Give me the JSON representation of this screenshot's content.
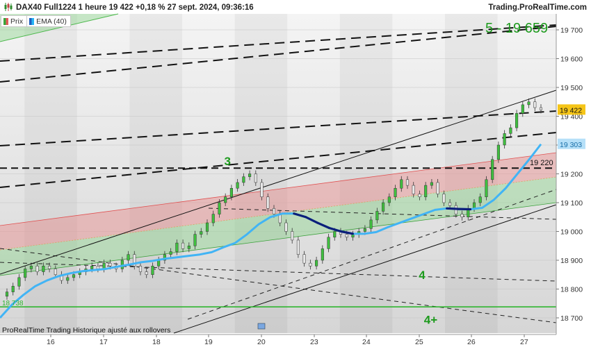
{
  "header": {
    "instrument": "DAX40 Full1224 1 heure 19 422 +0,18 % 27 sept. 2024, 09:36:16",
    "site": "Trading.ProRealTime.com"
  },
  "legend": {
    "items": [
      {
        "label": "Prix",
        "color": "#3aa63a",
        "color2": "#e05a5a"
      },
      {
        "label": "EMA (40)",
        "color": "#1f5fbf",
        "color2": "#27b4f5"
      }
    ]
  },
  "footer": {
    "text": "ProRealTime Trading  Historique ajusté aux rollovers"
  },
  "chart_data": {
    "type": "candlestick",
    "timeframe": "1 hour",
    "x_tick_labels": [
      "16",
      "17",
      "18",
      "19",
      "20",
      "23",
      "24",
      "25",
      "26",
      "27"
    ],
    "y_ticks": [
      18700,
      18800,
      18900,
      19000,
      19100,
      19200,
      19300,
      19400,
      19500,
      19600,
      19700
    ],
    "y_tick_labels": [
      "18 700",
      "18 800",
      "18 900",
      "19 000",
      "19 100",
      "19 200",
      "19 300",
      "19 400",
      "19 500",
      "19 600",
      "19 700"
    ],
    "ylim": [
      18670,
      19745
    ],
    "grid": true,
    "price_marker": {
      "value": 19422,
      "label": "19 422"
    },
    "ema_marker": {
      "value": 19303,
      "label": "19 303"
    },
    "level_lines": [
      {
        "value": 19220,
        "label": "19 220",
        "style": "dashed"
      },
      {
        "value": 18738,
        "label": "",
        "style": "solid-green"
      }
    ],
    "annotations": [
      {
        "text": "3",
        "x": 19.3,
        "y": 19230
      },
      {
        "text": "4",
        "x": 23.0,
        "y": 18835
      },
      {
        "text": "4+",
        "x": 23.1,
        "y": 18680
      },
      {
        "text": "5 - 19 659",
        "x": 26.3,
        "y": 19690
      }
    ],
    "left_marker_text": "18 738",
    "series": [
      {
        "name": "Prix",
        "type": "candles",
        "close": [
          18790,
          18810,
          18840,
          18870,
          18880,
          18860,
          18880,
          18870,
          18850,
          18830,
          18840,
          18850,
          18860,
          18870,
          18880,
          18870,
          18890,
          18880,
          18870,
          18900,
          18920,
          18880,
          18860,
          18850,
          18880,
          18900,
          18920,
          18930,
          18960,
          18940,
          18950,
          18990,
          19000,
          19030,
          19060,
          19100,
          19120,
          19150,
          19170,
          19190,
          19200,
          19170,
          19120,
          19080,
          19060,
          19030,
          19000,
          18970,
          18920,
          18890,
          18880,
          18900,
          18940,
          18980,
          19000,
          18990,
          18980,
          18990,
          19000,
          19010,
          19040,
          19070,
          19100,
          19120,
          19150,
          19180,
          19160,
          19130,
          19120,
          19160,
          19170,
          19130,
          19100,
          19090,
          19060,
          19050,
          19080,
          19100,
          19120,
          19180,
          19250,
          19300,
          19340,
          19360,
          19410,
          19440,
          19450,
          19430,
          19422
        ]
      },
      {
        "name": "EMA (40)",
        "type": "line",
        "values": [
          18700,
          18745,
          18780,
          18810,
          18830,
          18845,
          18855,
          18862,
          18866,
          18870,
          18878,
          18885,
          18893,
          18898,
          18905,
          18910,
          18915,
          18920,
          18928,
          18945,
          18960,
          18990,
          19025,
          19050,
          19062,
          19062,
          19050,
          19030,
          19012,
          19000,
          18992,
          18992,
          18998,
          19015,
          19030,
          19045,
          19060,
          19075,
          19080,
          19078,
          19077,
          19082,
          19110,
          19150,
          19200,
          19250,
          19303
        ]
      }
    ],
    "channels": [
      {
        "type": "upper-green-fill"
      },
      {
        "type": "red-fill"
      },
      {
        "type": "green-fill"
      }
    ]
  }
}
